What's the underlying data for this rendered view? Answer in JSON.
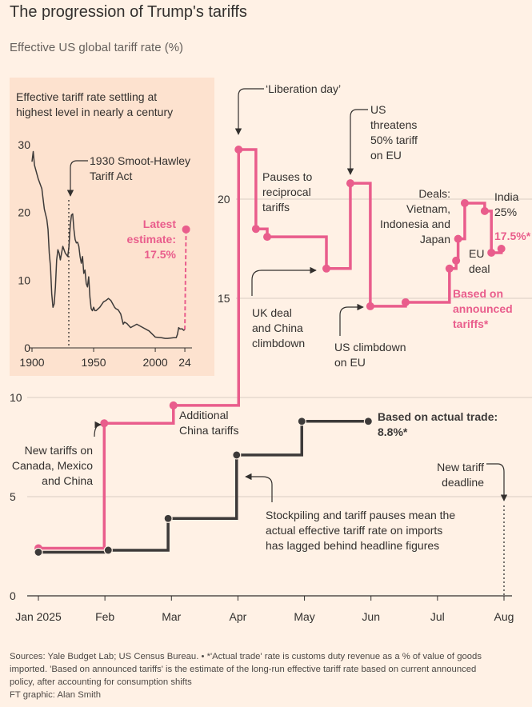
{
  "chart_data": [
    {
      "type": "line",
      "step": true,
      "title": "The progression of Trump's tariffs",
      "subtitle": "Effective US global tariff rate (%)",
      "xlim": [
        0,
        7
      ],
      "xticks": [
        {
          "value": 0,
          "label": "Jan 2025"
        },
        {
          "value": 1,
          "label": "Feb"
        },
        {
          "value": 2,
          "label": "Mar"
        },
        {
          "value": 3,
          "label": "Apr"
        },
        {
          "value": 4,
          "label": "May"
        },
        {
          "value": 5,
          "label": "Jun"
        },
        {
          "value": 6,
          "label": "Jul"
        },
        {
          "value": 7,
          "label": "Aug"
        }
      ],
      "ylim": [
        0,
        25
      ],
      "yticks": [
        0,
        5,
        10,
        15,
        20
      ],
      "grid": true,
      "series": [
        {
          "name": "Based on announced tariffs*",
          "color": "#e95d8c",
          "x": [
            0,
            0.99,
            2.03,
            3.01,
            3.27,
            3.44,
            4.33,
            4.69,
            4.99,
            5.52,
            6.18,
            6.28,
            6.31,
            6.41,
            6.71,
            6.81,
            6.96
          ],
          "values": [
            2.4,
            8.7,
            9.6,
            22.5,
            18.5,
            18.1,
            16.5,
            20.8,
            14.6,
            14.8,
            16.5,
            16.9,
            18.0,
            19.8,
            19.4,
            17.3,
            17.5
          ],
          "value_labels": [
            null,
            null,
            null,
            null,
            null,
            null,
            null,
            null,
            null,
            null,
            null,
            null,
            null,
            null,
            null,
            null,
            "17.5%*"
          ]
        },
        {
          "name": "Based on actual trade:",
          "color": "#3d3a39",
          "x": [
            0,
            1.05,
            1.95,
            2.98,
            3.96,
            4.96
          ],
          "values": [
            2.2,
            2.3,
            3.9,
            7.1,
            8.8,
            8.8
          ],
          "value_labels": [
            null,
            null,
            null,
            null,
            null,
            "8.8%*"
          ]
        }
      ],
      "annotations": [
        [
          "‘Liberation day’"
        ],
        [
          "Pauses to",
          "reciprocal",
          "tariffs"
        ],
        [
          "US",
          "threatens",
          "50% tariff",
          "on EU"
        ],
        [
          "Deals:",
          "Vietnam,",
          "Indonesia and",
          "Japan"
        ],
        [
          "India",
          "25%"
        ],
        [
          "EU",
          "deal"
        ],
        [
          "UK deal",
          "and China",
          "climbdown"
        ],
        [
          "US climbdown",
          "on EU"
        ],
        [
          "Additional",
          "China tariffs"
        ],
        [
          "New tariffs on",
          "Canada, Mexico",
          "and China"
        ],
        [
          "New tariff",
          "deadline"
        ],
        [
          "Stockpiling and tariff pauses mean the",
          "actual effective tariff rate on imports",
          "has lagged behind headline figures"
        ]
      ]
    },
    {
      "type": "line",
      "title": "Effective tariff rate settling at highest level in nearly a century",
      "xlim": [
        1900,
        2025
      ],
      "xticks": [
        1900,
        1950,
        2000,
        {
          "value": 2024,
          "label": "24"
        }
      ],
      "ylim": [
        0,
        30
      ],
      "yticks": [
        0,
        10,
        20,
        30
      ],
      "series": [
        {
          "color": "#3d3a39",
          "x": [
            1900,
            1901,
            1902,
            1905,
            1908,
            1909,
            1910,
            1912,
            1913,
            1914,
            1915,
            1916,
            1917,
            1918,
            1919,
            1920,
            1921,
            1922,
            1923,
            1925,
            1927,
            1929,
            1930,
            1931,
            1932,
            1933,
            1934,
            1935,
            1936,
            1937,
            1938,
            1939,
            1940,
            1941,
            1942,
            1943,
            1944,
            1945,
            1946,
            1947,
            1948,
            1949,
            1950,
            1951,
            1952,
            1955,
            1958,
            1960,
            1962,
            1964,
            1967,
            1968,
            1970,
            1972,
            1974,
            1975,
            1977,
            1980,
            1985,
            1990,
            1995,
            2000,
            2005,
            2008,
            2010,
            2015,
            2017,
            2018,
            2019,
            2020,
            2022,
            2023,
            2024
          ],
          "values": [
            27.5,
            29,
            27,
            25,
            23.5,
            22,
            20.5,
            19,
            17.5,
            14,
            12,
            8,
            6,
            6.5,
            9,
            13,
            14.5,
            14,
            13,
            15,
            14,
            13.5,
            15,
            18,
            19.6,
            19.8,
            17.5,
            16,
            15.5,
            15.6,
            15,
            13.5,
            12.5,
            13.5,
            11,
            11.5,
            9.5,
            9,
            10.5,
            7.5,
            5.8,
            5.5,
            6,
            5.5,
            5.5,
            6,
            6.8,
            7,
            7.3,
            7,
            6,
            5.8,
            5.6,
            5,
            3.5,
            3.8,
            3.6,
            3,
            3.5,
            3,
            2.5,
            1.6,
            1.5,
            1.4,
            1.4,
            1.5,
            1.5,
            2,
            3,
            2.8,
            2.8,
            2.6,
            2.7
          ]
        },
        {
          "name": "Latest estimate:",
          "color": "#e95d8c",
          "x": [
            2024,
            2025
          ],
          "values": [
            2.7,
            17.5
          ],
          "value_labels": [
            null,
            "17.5%"
          ]
        }
      ],
      "annotations": [
        [
          "1930 Smoot-Hawley",
          "Tariff Act"
        ]
      ]
    }
  ],
  "footer": [
    "Sources: Yale Budget Lab; US Census Bureau. • *'Actual trade' rate is customs duty revenue as a % of value of goods",
    "imported. 'Based on announced tariffs' is the estimate of the long-run effective tariff rate based on current announced",
    "policy, after accounting for consumption shifts",
    "FT graphic: Alan Smith"
  ]
}
